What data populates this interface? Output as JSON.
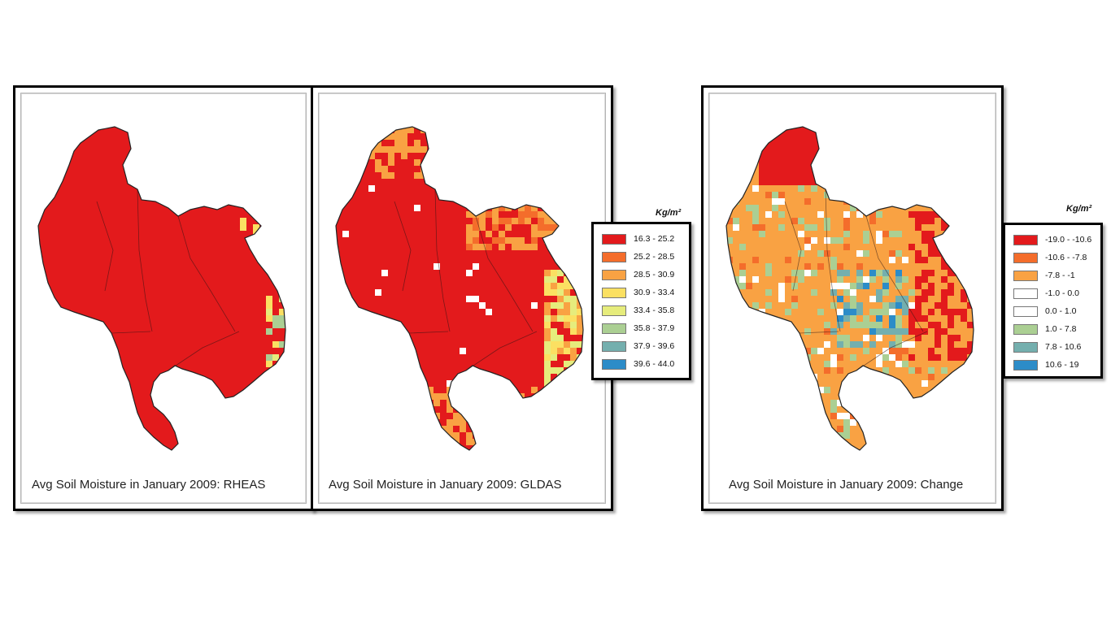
{
  "maps": [
    {
      "id": "rheas",
      "caption": "Avg Soil Moisture in January 2009: RHEAS",
      "palette": [
        "#e31a1c",
        "#e31a1c",
        "#e31a1c",
        "#e31a1c",
        "#e31a1c",
        "#f9e463",
        "#e8e87a",
        "#a8cc92"
      ],
      "weights": [
        92,
        3,
        2,
        1,
        1,
        1
      ]
    },
    {
      "id": "gldas",
      "caption": "Avg Soil Moisture in January 2009: GLDAS"
    },
    {
      "id": "change",
      "caption": "Avg Soil Moisture in January 2009: Change"
    }
  ],
  "legends": {
    "gldas": {
      "unit": "Kg/m²",
      "items": [
        {
          "label": "16.3 - 25.2",
          "color": "#e31a1c"
        },
        {
          "label": "25.2 - 28.5",
          "color": "#f46d2b"
        },
        {
          "label": "28.5 - 30.9",
          "color": "#f9a243"
        },
        {
          "label": "30.9 - 33.4",
          "color": "#fbe062"
        },
        {
          "label": "33.4 - 35.8",
          "color": "#e6ec7c"
        },
        {
          "label": "35.8 - 37.9",
          "color": "#abcf93"
        },
        {
          "label": "37.9 - 39.6",
          "color": "#74afae"
        },
        {
          "label": "39.6 - 44.0",
          "color": "#2c8cc8"
        }
      ]
    },
    "change": {
      "unit": "Kg/m²",
      "items": [
        {
          "label": "-19.0 - -10.6",
          "color": "#e31a1c"
        },
        {
          "label": "-10.6 - -7.8",
          "color": "#f46d2b"
        },
        {
          "label": "-7.8 - -1",
          "color": "#f9a243"
        },
        {
          "label": "-1.0 - 0.0",
          "color": "#ffffff"
        },
        {
          "label": "0.0 - 1.0",
          "color": "#ffffff"
        },
        {
          "label": "1.0 - 7.8",
          "color": "#abcf93"
        },
        {
          "label": "7.8 - 10.6",
          "color": "#74afae"
        },
        {
          "label": "10.6 - 19",
          "color": "#2c8cc8"
        }
      ]
    }
  }
}
